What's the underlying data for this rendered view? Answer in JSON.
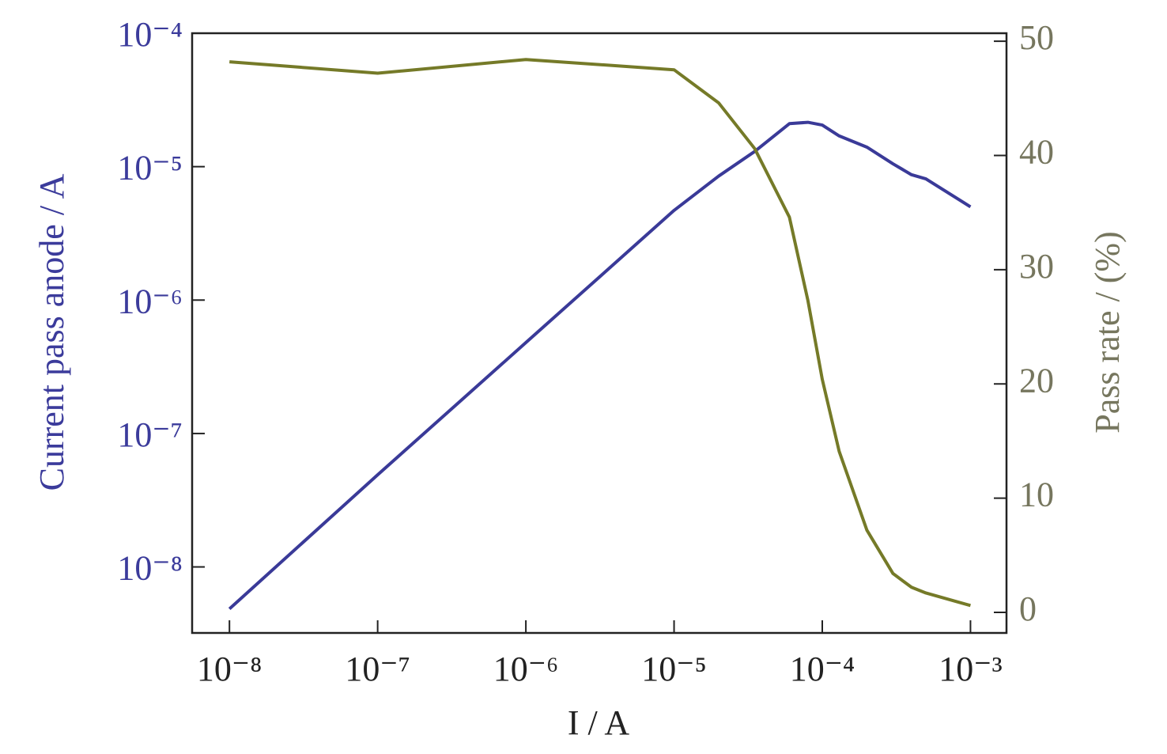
{
  "chart_data": {
    "type": "line",
    "x_label": "I / A",
    "y_label": "Current pass anode / A",
    "y2_label": "Pass rate / (%)",
    "x_log": true,
    "y_log": true,
    "xlim": [
      5.6e-09,
      0.00175
    ],
    "xticks": [
      {
        "value": 1e-08,
        "label": "10⁻⁸"
      },
      {
        "value": 1e-07,
        "label": "10⁻⁷"
      },
      {
        "value": 1e-06,
        "label": "10⁻⁶"
      },
      {
        "value": 1e-05,
        "label": "10⁻⁵"
      },
      {
        "value": 0.0001,
        "label": "10⁻⁴"
      },
      {
        "value": 0.001,
        "label": "10⁻³"
      }
    ],
    "ylim": [
      3.2e-09,
      0.0001
    ],
    "yticks": [
      {
        "value": 1e-08,
        "label": "10⁻⁸"
      },
      {
        "value": 1e-07,
        "label": "10⁻⁷"
      },
      {
        "value": 1e-06,
        "label": "10⁻⁶"
      },
      {
        "value": 1e-05,
        "label": "10⁻⁵"
      },
      {
        "value": 0.0001,
        "label": "10⁻⁴"
      }
    ],
    "y2lim": [
      -1.8,
      50.7
    ],
    "y2ticks": [
      0,
      10,
      20,
      30,
      40,
      50
    ],
    "x": [
      1e-08,
      1e-07,
      1e-06,
      1e-05,
      2e-05,
      3.5e-05,
      6e-05,
      8e-05,
      0.0001,
      0.00013,
      0.0002,
      0.0003,
      0.0004,
      0.0005,
      0.001
    ],
    "series": [
      {
        "color": "#3a3a98",
        "values": [
          4.85e-09,
          4.9e-08,
          4.8e-07,
          4.7e-06,
          8.5e-06,
          1.3e-05,
          2.1e-05,
          2.15e-05,
          2.05e-05,
          1.7e-05,
          1.4e-05,
          1.05e-05,
          8.7e-06,
          8.1e-06,
          5e-06
        ]
      },
      {
        "color": "#757a28",
        "axis": "y2",
        "values": [
          48.2,
          47.2,
          48.4,
          47.5,
          44.6,
          40.6,
          34.6,
          27.3,
          20.4,
          14.1,
          7.2,
          3.4,
          2.2,
          1.7,
          0.6
        ]
      }
    ]
  }
}
